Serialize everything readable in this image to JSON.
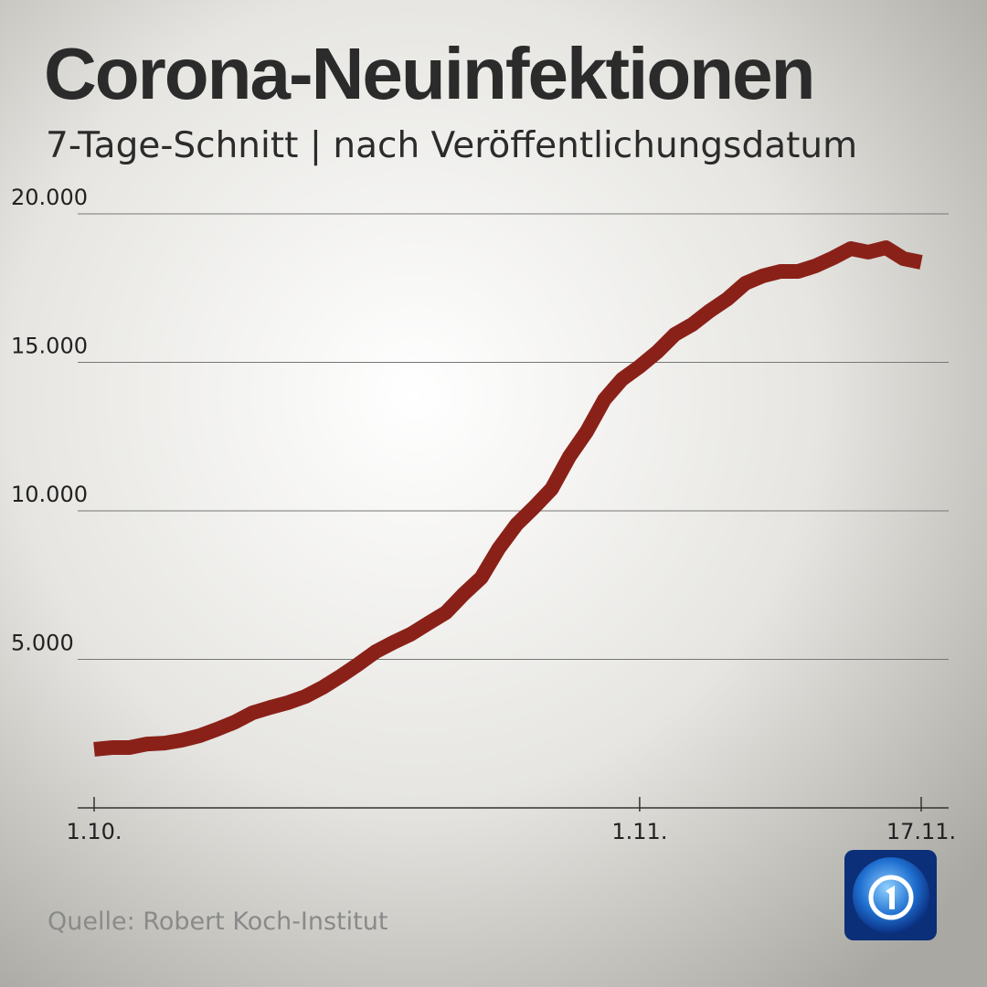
{
  "chart_data": {
    "type": "line",
    "title": "Corona-Neuinfektionen",
    "subtitle": "7-Tage-Schnitt | nach Veröffentlichungsdatum",
    "source": "Quelle: Robert Koch-Institut",
    "categories": [
      "1.10.",
      null,
      null,
      null,
      null,
      null,
      null,
      null,
      null,
      null,
      null,
      null,
      null,
      null,
      null,
      null,
      null,
      null,
      null,
      null,
      null,
      null,
      null,
      null,
      null,
      null,
      null,
      null,
      null,
      null,
      null,
      "1.11.",
      null,
      null,
      null,
      null,
      null,
      null,
      null,
      null,
      null,
      null,
      null,
      null,
      null,
      null,
      null,
      "17.11."
    ],
    "values": [
      1970,
      2030,
      2030,
      2150,
      2180,
      2280,
      2430,
      2650,
      2890,
      3200,
      3380,
      3540,
      3750,
      4060,
      4430,
      4830,
      5260,
      5570,
      5850,
      6220,
      6580,
      7200,
      7750,
      8740,
      9540,
      10120,
      10740,
      11820,
      12680,
      13750,
      14430,
      14860,
      15350,
      15940,
      16280,
      16740,
      17140,
      17660,
      17910,
      18060,
      18060,
      18250,
      18520,
      18830,
      18710,
      18860,
      18490,
      18370
    ],
    "color": "#8a2118",
    "ylim": [
      0,
      20000
    ],
    "yticks": [
      {
        "value": 5000,
        "label": "5.000"
      },
      {
        "value": 10000,
        "label": "10.000"
      },
      {
        "value": 15000,
        "label": "15.000"
      },
      {
        "value": 20000,
        "label": "20.000"
      }
    ],
    "grid": true
  }
}
